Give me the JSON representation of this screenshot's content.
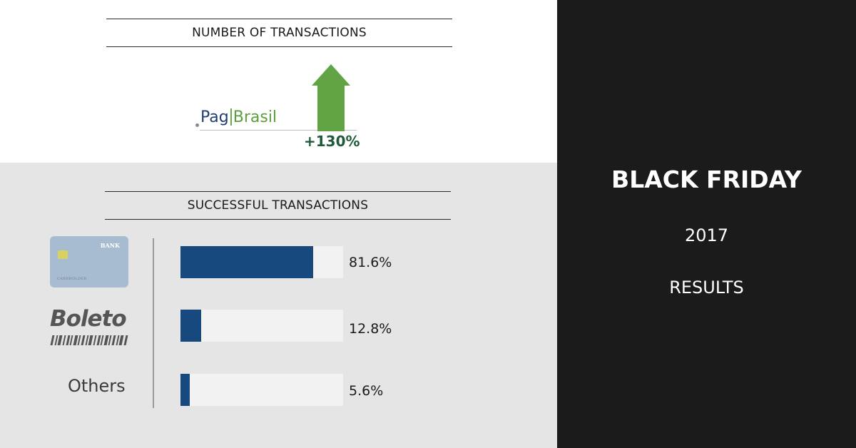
{
  "sidebar": {
    "title": "BLACK FRIDAY",
    "year": "2017",
    "subtitle": "RESULTS",
    "background": "#1b1b1b"
  },
  "transactions": {
    "section_title": "NUMBER OF TRANSACTIONS",
    "logo": {
      "part1": "Pag",
      "part2": "Brasil"
    },
    "growth_label": "+130%",
    "arrow_color": "#62a444"
  },
  "success": {
    "section_title": "SUCCESSFUL TRANSACTIONS",
    "card_icon": {
      "bank_label": "BANK",
      "holder_label": "CARDHOLDER"
    },
    "boleto_logo": "Boleto",
    "others_label": "Others"
  },
  "chart_data": {
    "type": "bar",
    "orientation": "horizontal",
    "title": "SUCCESSFUL TRANSACTIONS",
    "categories": [
      "Credit card",
      "Boleto",
      "Others"
    ],
    "values": [
      81.6,
      12.8,
      5.6
    ],
    "labels": [
      "81.6%",
      "12.8%",
      "5.6%"
    ],
    "xlim": [
      0,
      100
    ],
    "unit": "%",
    "bar_color": "#17487e",
    "track_color": "#f2f2f2",
    "grid": false
  }
}
